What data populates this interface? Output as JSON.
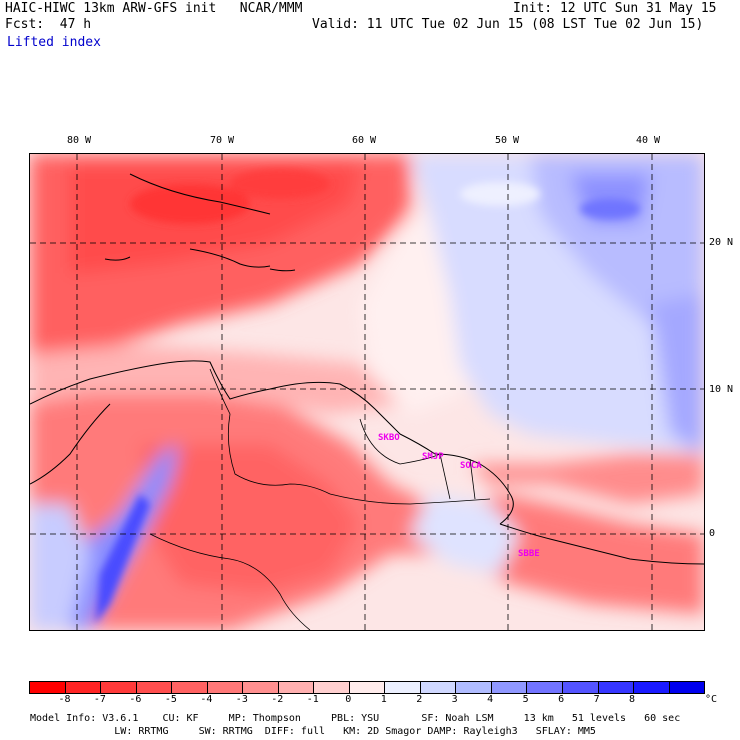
{
  "header": {
    "model_title": "HAIC-HIWC 13km ARW-GFS init   NCAR/MMM",
    "init_time": "Init: 12 UTC Sun 31 May 15",
    "forecast": "Fcst:  47 h",
    "valid_time": "Valid: 11 UTC Tue 02 Jun 15 (08 LST Tue 02 Jun 15)",
    "field_name": "Lifted index"
  },
  "map": {
    "lon_labels": [
      "80 W",
      "70 W",
      "60 W",
      "50 W",
      "40 W"
    ],
    "lat_labels": [
      "20 N",
      "10 N",
      "0"
    ],
    "stations": [
      "SKBO",
      "SMJP",
      "SOCA",
      "SBBE"
    ]
  },
  "colorbar": {
    "unit": "°C",
    "tick_labels": [
      "-8",
      "-7",
      "-6",
      "-5",
      "-4",
      "-3",
      "-2",
      "-1",
      "0",
      "1",
      "2",
      "3",
      "4",
      "5",
      "6",
      "7",
      "8"
    ],
    "colors": [
      "#ff0000",
      "#ff2424",
      "#ff3a3a",
      "#ff4e4e",
      "#ff6262",
      "#ff7878",
      "#ff9090",
      "#ffb0b0",
      "#ffd0d0",
      "#ffecec",
      "#ecf0ff",
      "#d0d8ff",
      "#b0bcff",
      "#9098ff",
      "#7274ff",
      "#5454ff",
      "#3636ff",
      "#1a1aff",
      "#0000ee"
    ]
  },
  "model_info": {
    "line1": "Model Info: V3.6.1    CU: KF     MP: Thompson     PBL: YSU       SF: Noah LSM     13 km   51 levels   60 sec",
    "line2": "              LW: RRTMG     SW: RRTMG  DIFF: full   KM: 2D Smagor DAMP: Rayleigh3   SFLAY: MM5"
  }
}
